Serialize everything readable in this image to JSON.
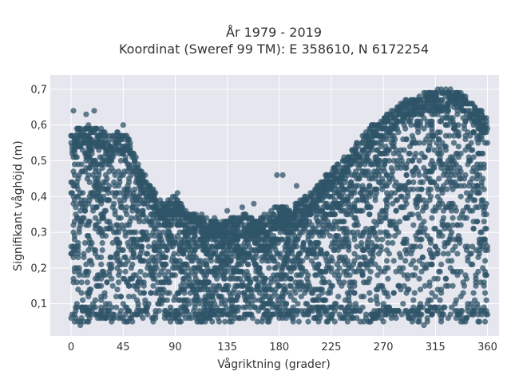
{
  "chart_data": {
    "type": "scatter",
    "title_line1": "År 1979 - 2019",
    "title_line2": "Koordinat (Sweref 99 TM): E 358610, N 6172254",
    "xlabel": "Vågriktning (grader)",
    "ylabel": "Signifikant våghöjd (m)",
    "xlim": [
      -18,
      370
    ],
    "ylim": [
      0.01,
      0.74
    ],
    "xticks": [
      0,
      45,
      90,
      135,
      180,
      225,
      270,
      315,
      360
    ],
    "xtick_labels": [
      "0",
      "45",
      "90",
      "135",
      "180",
      "225",
      "270",
      "315",
      "360"
    ],
    "yticks": [
      0.1,
      0.2,
      0.3,
      0.4,
      0.5,
      0.6,
      0.7
    ],
    "ytick_labels": [
      "0,1",
      "0,2",
      "0,3",
      "0,4",
      "0,5",
      "0,6",
      "0,7"
    ],
    "grid": true,
    "marker_color": "#2f5468",
    "plot_background": "#e5e6ee",
    "envelope": {
      "direction": [
        0,
        10,
        20,
        30,
        40,
        50,
        60,
        70,
        80,
        90,
        100,
        110,
        120,
        130,
        140,
        150,
        160,
        170,
        180,
        190,
        200,
        210,
        220,
        230,
        240,
        250,
        260,
        270,
        280,
        290,
        300,
        310,
        320,
        330,
        340,
        350,
        360
      ],
      "max_height": [
        0.58,
        0.6,
        0.6,
        0.58,
        0.58,
        0.57,
        0.48,
        0.42,
        0.38,
        0.4,
        0.36,
        0.35,
        0.34,
        0.33,
        0.34,
        0.35,
        0.34,
        0.35,
        0.38,
        0.37,
        0.4,
        0.42,
        0.46,
        0.49,
        0.52,
        0.56,
        0.6,
        0.62,
        0.65,
        0.67,
        0.68,
        0.7,
        0.7,
        0.7,
        0.69,
        0.65,
        0.62
      ],
      "min_height": 0.05
    },
    "outliers": [
      {
        "x": 2,
        "y": 0.64
      },
      {
        "x": 20,
        "y": 0.64
      },
      {
        "x": 13,
        "y": 0.63
      },
      {
        "x": 45,
        "y": 0.6
      },
      {
        "x": 92,
        "y": 0.41
      },
      {
        "x": 135,
        "y": 0.36
      },
      {
        "x": 148,
        "y": 0.37
      },
      {
        "x": 158,
        "y": 0.38
      },
      {
        "x": 178,
        "y": 0.46
      },
      {
        "x": 183,
        "y": 0.46
      },
      {
        "x": 195,
        "y": 0.43
      },
      {
        "x": 355,
        "y": 0.64
      },
      {
        "x": 8,
        "y": 0.04
      },
      {
        "x": 305,
        "y": 0.04
      },
      {
        "x": 358,
        "y": 0.05
      }
    ]
  }
}
